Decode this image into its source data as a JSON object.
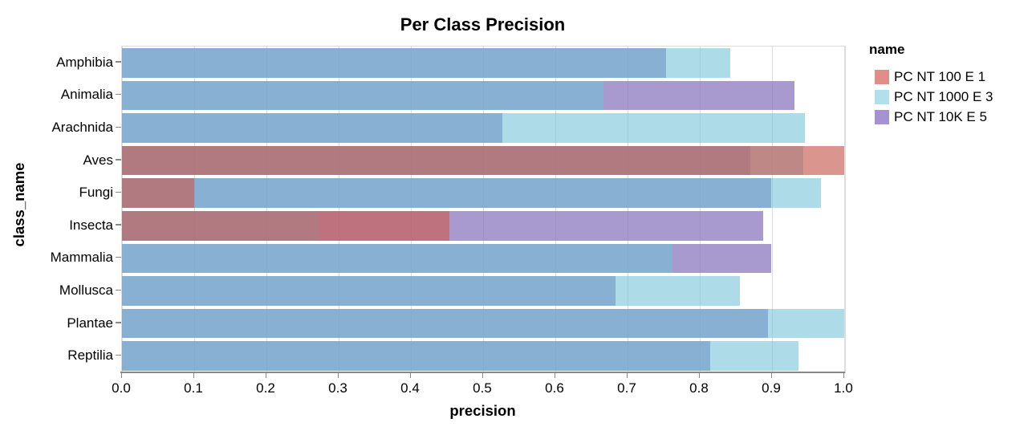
{
  "title": "Per Class Precision",
  "axes": {
    "x": {
      "title": "precision",
      "tick_labels": [
        "0.0",
        "0.1",
        "0.2",
        "0.3",
        "0.4",
        "0.5",
        "0.6",
        "0.7",
        "0.8",
        "0.9",
        "1.0"
      ]
    },
    "y": {
      "title": "class_name"
    }
  },
  "legend": {
    "title": "name",
    "entries": [
      {
        "label": "PC NT 100 E 1",
        "swatch_color": "#E08E87"
      },
      {
        "label": "PC NT 1000 E 3",
        "swatch_color": "#B0E1EB"
      },
      {
        "label": "PC NT 10K E 5",
        "swatch_color": "#A492D3"
      }
    ]
  },
  "chart_data": {
    "type": "bar",
    "orientation": "horizontal",
    "title": "Per Class Precision",
    "xlabel": "precision",
    "ylabel": "class_name",
    "xlim": [
      0.0,
      1.0
    ],
    "grid": true,
    "legend_position": "right",
    "categories": [
      "Amphibia",
      "Animalia",
      "Arachnida",
      "Aves",
      "Fungi",
      "Insecta",
      "Mammalia",
      "Mollusca",
      "Plantae",
      "Reptilia"
    ],
    "series": [
      {
        "name": "PC NT 10K E 5",
        "layer": 1,
        "fill": "rgba(131,111,185,0.70)",
        "solid_color": "#A89ACE",
        "values": [
          0.753,
          0.931,
          0.527,
          0.87,
          0.899,
          0.888,
          0.899,
          0.683,
          0.894,
          0.814
        ]
      },
      {
        "name": "PC NT 1000 E 3",
        "layer": 2,
        "fill": "rgba(114,193,215,0.58)",
        "solid_color": "#ADDBE8",
        "values": [
          0.842,
          0.667,
          0.946,
          0.943,
          0.968,
          0.272,
          0.762,
          0.856,
          1.0,
          0.937
        ]
      },
      {
        "name": "PC NT 100 E 1",
        "layer": 3,
        "fill": "rgba(200,92,83,0.65)",
        "solid_color": "#DB958F",
        "values": [
          null,
          null,
          null,
          1.0,
          0.1,
          0.453,
          null,
          null,
          null,
          null
        ]
      }
    ],
    "style": {
      "gridline_color": "#dddddd",
      "axis_domain_color": "#888888",
      "tick_color": "#888888",
      "label_color": "#000000",
      "plot_border_color": "#dddddd"
    }
  }
}
